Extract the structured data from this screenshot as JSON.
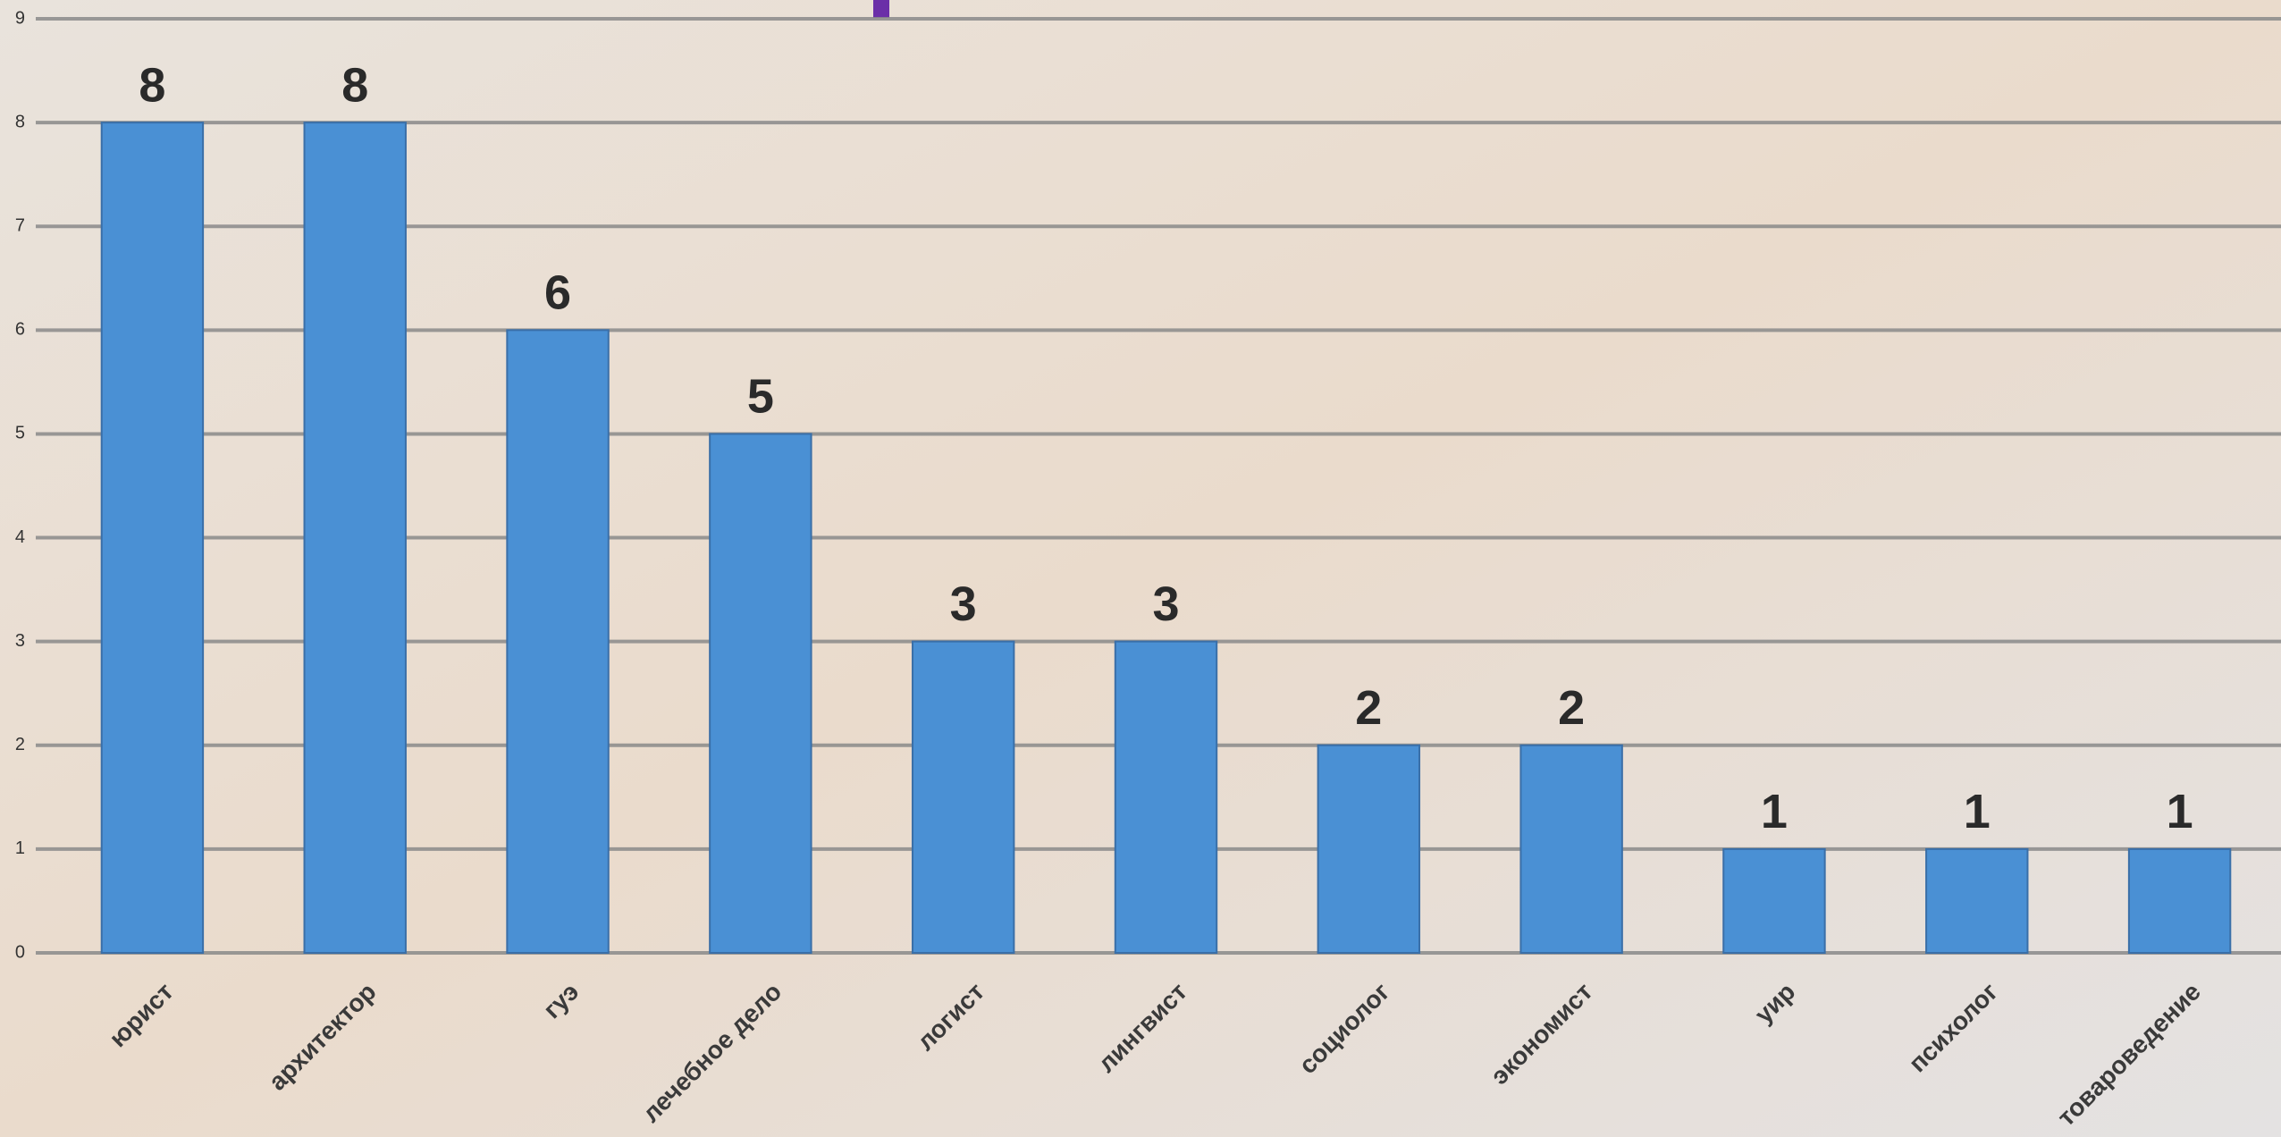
{
  "chart_data": {
    "type": "bar",
    "categories": [
      "юрист",
      "архитектор",
      "гуэ",
      "лечебное дело",
      "логист",
      "лингвист",
      "социолог",
      "экономист",
      "уир",
      "психолог",
      "товароведение"
    ],
    "values": [
      8,
      8,
      6,
      5,
      3,
      3,
      2,
      2,
      1,
      1,
      1
    ],
    "color": "#4a90d4",
    "ylim": [
      0,
      9
    ],
    "yticks": [
      0,
      1,
      2,
      3,
      4,
      5,
      6,
      7,
      8,
      9
    ],
    "grid": true
  }
}
